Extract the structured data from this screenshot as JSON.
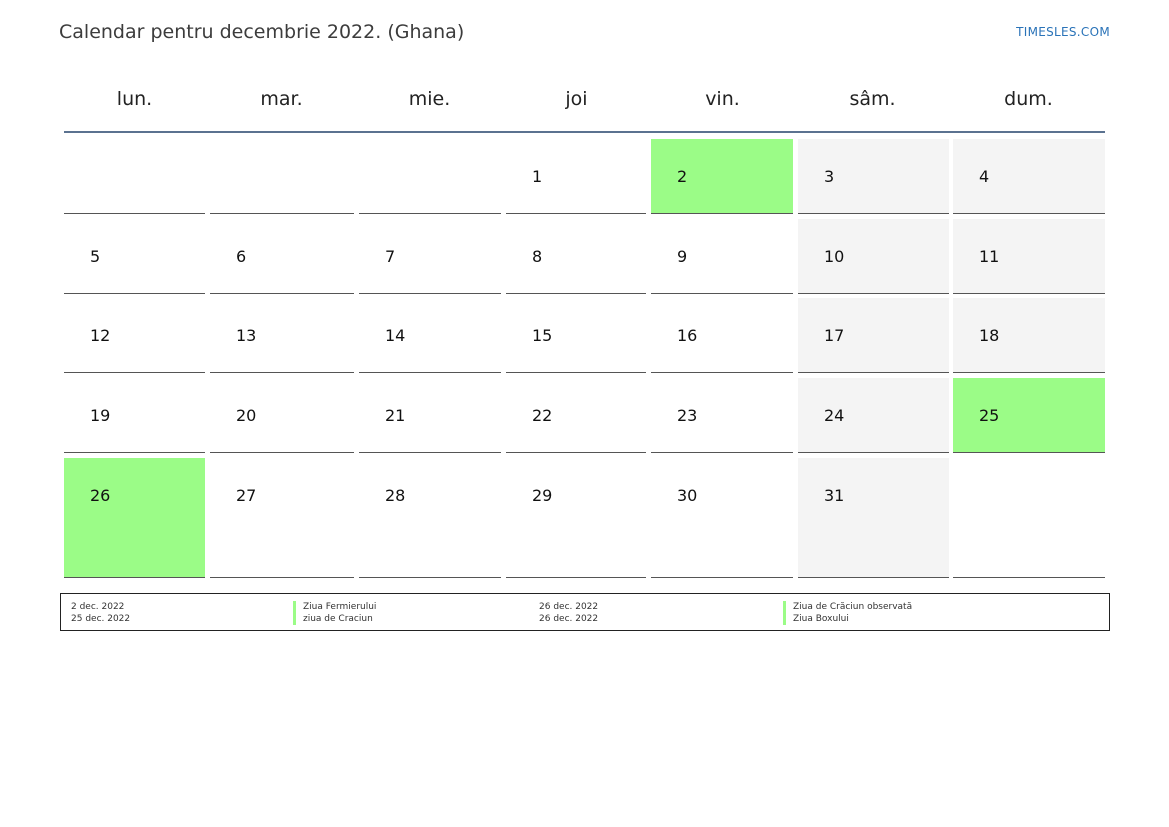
{
  "header": {
    "title": "Calendar pentru decembrie 2022. (Ghana)",
    "brand": "TIMESLES.COM"
  },
  "weekdays": [
    "lun.",
    "mar.",
    "mie.",
    "joi",
    "vin.",
    "sâm.",
    "dum."
  ],
  "weeks": [
    [
      "",
      "",
      "",
      "1",
      "2",
      "3",
      "4"
    ],
    [
      "5",
      "6",
      "7",
      "8",
      "9",
      "10",
      "11"
    ],
    [
      "12",
      "13",
      "14",
      "15",
      "16",
      "17",
      "18"
    ],
    [
      "19",
      "20",
      "21",
      "22",
      "23",
      "24",
      "25"
    ],
    [
      "26",
      "27",
      "28",
      "29",
      "30",
      "31",
      ""
    ]
  ],
  "holiday_days": [
    "2",
    "25",
    "26"
  ],
  "colors": {
    "holiday": "#9bfc87",
    "weekend": "#f4f4f4",
    "header_rule": "#5b7290",
    "brand": "#2a73b8"
  },
  "legend": [
    {
      "date": "2 dec. 2022",
      "name": "Ziua Fermierului"
    },
    {
      "date": "25 dec. 2022",
      "name": "ziua de Craciun"
    },
    {
      "date": "26 dec. 2022",
      "name": "Ziua de Crăciun observată"
    },
    {
      "date": "26 dec. 2022",
      "name": "Ziua Boxului"
    }
  ]
}
